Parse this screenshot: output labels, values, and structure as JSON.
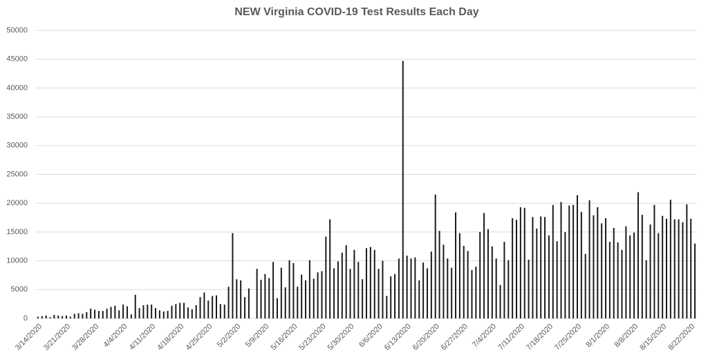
{
  "chart_data": {
    "type": "bar",
    "title": "NEW Virginia COVID-19 Test Results Each Day",
    "categories": [
      "3/14/2020",
      null,
      null,
      null,
      null,
      null,
      null,
      "3/21/2020",
      null,
      null,
      null,
      null,
      null,
      null,
      "3/28/2020",
      null,
      null,
      null,
      null,
      null,
      null,
      "4/4/2020",
      null,
      null,
      null,
      null,
      null,
      null,
      "4/11/2020",
      null,
      null,
      null,
      null,
      null,
      null,
      "4/18/2020",
      null,
      null,
      null,
      null,
      null,
      null,
      "4/25/2020",
      null,
      null,
      null,
      null,
      null,
      null,
      "5/2/2020",
      null,
      null,
      null,
      null,
      null,
      null,
      "5/9/2020",
      null,
      null,
      null,
      null,
      null,
      null,
      "5/16/2020",
      null,
      null,
      null,
      null,
      null,
      null,
      "5/23/2020",
      null,
      null,
      null,
      null,
      null,
      null,
      "5/30/2020",
      null,
      null,
      null,
      null,
      null,
      null,
      "6/6/2020",
      null,
      null,
      null,
      null,
      null,
      null,
      "6/13/2020",
      null,
      null,
      null,
      null,
      null,
      null,
      "6/20/2020",
      null,
      null,
      null,
      null,
      null,
      null,
      "6/27/2020",
      null,
      null,
      null,
      null,
      null,
      null,
      "7/4/2020",
      null,
      null,
      null,
      null,
      null,
      null,
      "7/11/2020",
      null,
      null,
      null,
      null,
      null,
      null,
      "7/18/2020",
      null,
      null,
      null,
      null,
      null,
      null,
      "7/25/2020",
      null,
      null,
      null,
      null,
      null,
      null,
      "8/1/2020",
      null,
      null,
      null,
      null,
      null,
      null,
      "8/8/2020",
      null,
      null,
      null,
      null,
      null,
      null,
      "8/15/2020",
      null,
      null,
      null,
      null,
      null,
      null,
      "8/22/2020",
      null
    ],
    "values": [
      300,
      400,
      500,
      200,
      600,
      500,
      400,
      500,
      300,
      800,
      900,
      800,
      1100,
      1700,
      1500,
      1300,
      1300,
      1700,
      2000,
      2200,
      1400,
      2400,
      2100,
      700,
      4100,
      1800,
      2300,
      2400,
      2400,
      1800,
      1400,
      1200,
      1300,
      2200,
      2500,
      2700,
      2700,
      1900,
      1600,
      2300,
      3700,
      4500,
      3100,
      3900,
      4000,
      2500,
      2400,
      5500,
      14800,
      6800,
      6600,
      3700,
      5200,
      0,
      8600,
      6700,
      7700,
      7000,
      9800,
      3500,
      8800,
      5400,
      10100,
      9600,
      5500,
      7600,
      6600,
      10100,
      6900,
      8000,
      8200,
      14200,
      17200,
      8700,
      9900,
      11400,
      12700,
      8600,
      11900,
      9800,
      6800,
      12200,
      12400,
      11900,
      8600,
      10000,
      3900,
      7300,
      7700,
      10400,
      44700,
      10900,
      10400,
      10600,
      6600,
      9700,
      8700,
      11600,
      21500,
      15200,
      12800,
      10400,
      8800,
      18400,
      14800,
      12600,
      11700,
      8400,
      9000,
      15000,
      18300,
      15500,
      12500,
      10400,
      5800,
      13300,
      10100,
      17400,
      17100,
      19300,
      19200,
      10200,
      17600,
      15600,
      17700,
      17600,
      14400,
      19700,
      13400,
      20200,
      15000,
      19600,
      19700,
      21400,
      18500,
      11200,
      20500,
      17900,
      19300,
      16500,
      17400,
      13300,
      15700,
      13200,
      11900,
      16000,
      14400,
      14900,
      21900,
      18000,
      10100,
      16300,
      19700,
      14800,
      17800,
      17300,
      20600,
      17200,
      17200,
      16700,
      19800,
      17300,
      13000
    ],
    "color": "#1a1a1a",
    "ylim": [
      0,
      50000
    ],
    "yticks": [
      0,
      5000,
      10000,
      15000,
      20000,
      25000,
      30000,
      35000,
      40000,
      45000,
      50000
    ],
    "grid": true
  }
}
